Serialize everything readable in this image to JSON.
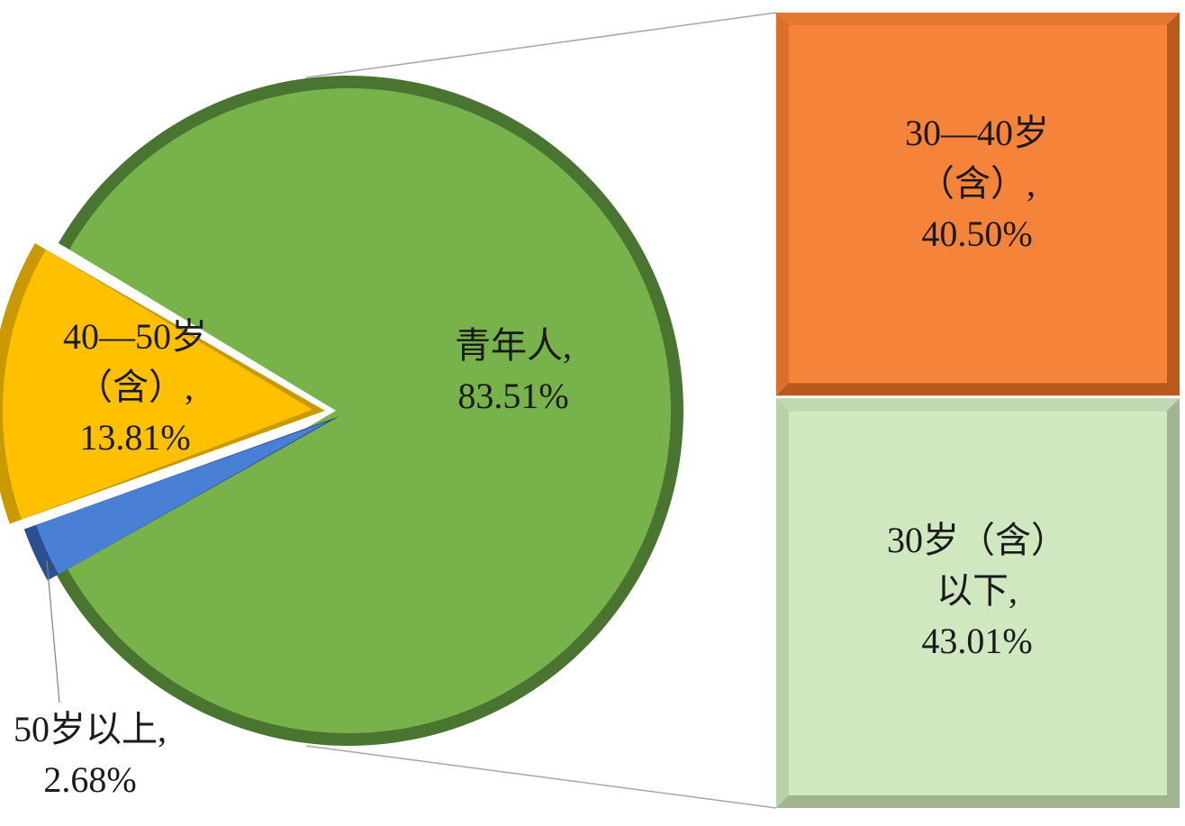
{
  "chart_data": {
    "type": "pie-of-bar",
    "pie": {
      "slices": [
        {
          "label": "青年人",
          "value": 83.51,
          "display": "青年人,\n83.51%",
          "color": "#77b24b",
          "edge": "#4a7530"
        },
        {
          "label": "40—50岁（含）",
          "value": 13.81,
          "display": "40—50岁\n（含）,\n13.81%",
          "color": "#ffc000",
          "edge": "#c99a00"
        },
        {
          "label": "50岁以上",
          "value": 2.68,
          "display": "50岁以上,\n2.68%",
          "color": "#4a7fd6",
          "edge": "#2c4f8f"
        }
      ]
    },
    "bar": {
      "of_slice": "青年人",
      "segments": [
        {
          "label": "30—40岁（含）",
          "value": 40.5,
          "display": "30—40岁\n（含）,\n40.50%",
          "color": "#f5843a",
          "edge": "#b85a1c"
        },
        {
          "label": "30岁（含）以下",
          "value": 43.01,
          "display": "30岁（含）\n以下,\n43.01%",
          "color": "#d0e8c0",
          "edge": "#9fb48f"
        }
      ]
    }
  }
}
